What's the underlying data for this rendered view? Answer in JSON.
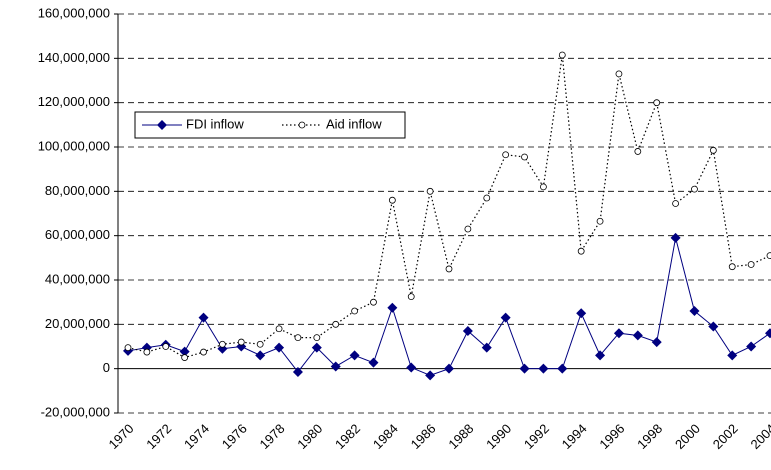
{
  "chart_data": {
    "type": "line",
    "categories": [
      "1970",
      null,
      "1972",
      null,
      "1974",
      null,
      "1976",
      null,
      "1978",
      null,
      "1980",
      null,
      "1982",
      null,
      "1984",
      null,
      "1986",
      null,
      "1988",
      null,
      "1990",
      null,
      "1992",
      null,
      "1994",
      null,
      "1996",
      null,
      "1998",
      null,
      "2000",
      null,
      "2002",
      null,
      "2004"
    ],
    "series": [
      {
        "name": "FDI inflow",
        "color": "#000080",
        "values": [
          8000000,
          9500000,
          10800000,
          7700000,
          23000000,
          9000000,
          10000000,
          6000000,
          9500000,
          -1500000,
          9500000,
          1000000,
          6000000,
          2700000,
          27500000,
          500000,
          -3000000,
          0,
          17000000,
          9500000,
          23000000,
          0,
          0,
          0,
          25000000,
          6000000,
          16000000,
          15000000,
          12000000,
          59000000,
          26000000,
          19000000,
          6000000,
          10000000,
          16000000
        ]
      },
      {
        "name": "Aid inflow",
        "color": "#000000",
        "values": [
          9500000,
          7500000,
          10000000,
          5000000,
          7500000,
          11000000,
          12000000,
          11000000,
          18000000,
          14000000,
          14000000,
          20000000,
          26000000,
          30000000,
          76000000,
          32500000,
          80000000,
          45000000,
          63000000,
          77000000,
          96500000,
          95500000,
          82000000,
          141500000,
          53000000,
          66500000,
          133000000,
          98000000,
          120000000,
          74500000,
          81000000,
          98500000,
          46000000,
          47000000,
          51000000
        ]
      }
    ],
    "ylim": [
      -20000000,
      160000000
    ],
    "yticks": [
      {
        "value": -20000000,
        "label": "-20,000,000"
      },
      0,
      {
        "value": 20000000,
        "label": "20,000,000"
      },
      {
        "value": 40000000,
        "label": "40,000,000"
      },
      {
        "value": 60000000,
        "label": "60,000,000"
      },
      {
        "value": 80000000,
        "label": "80,000,000"
      },
      {
        "value": 100000000,
        "label": "100,000,000"
      },
      {
        "value": 120000000,
        "label": "120,000,000"
      },
      {
        "value": 140000000,
        "label": "140,000,000"
      },
      {
        "value": 160000000,
        "label": "160,000,000"
      }
    ],
    "grid": true,
    "legend": "upper left"
  }
}
